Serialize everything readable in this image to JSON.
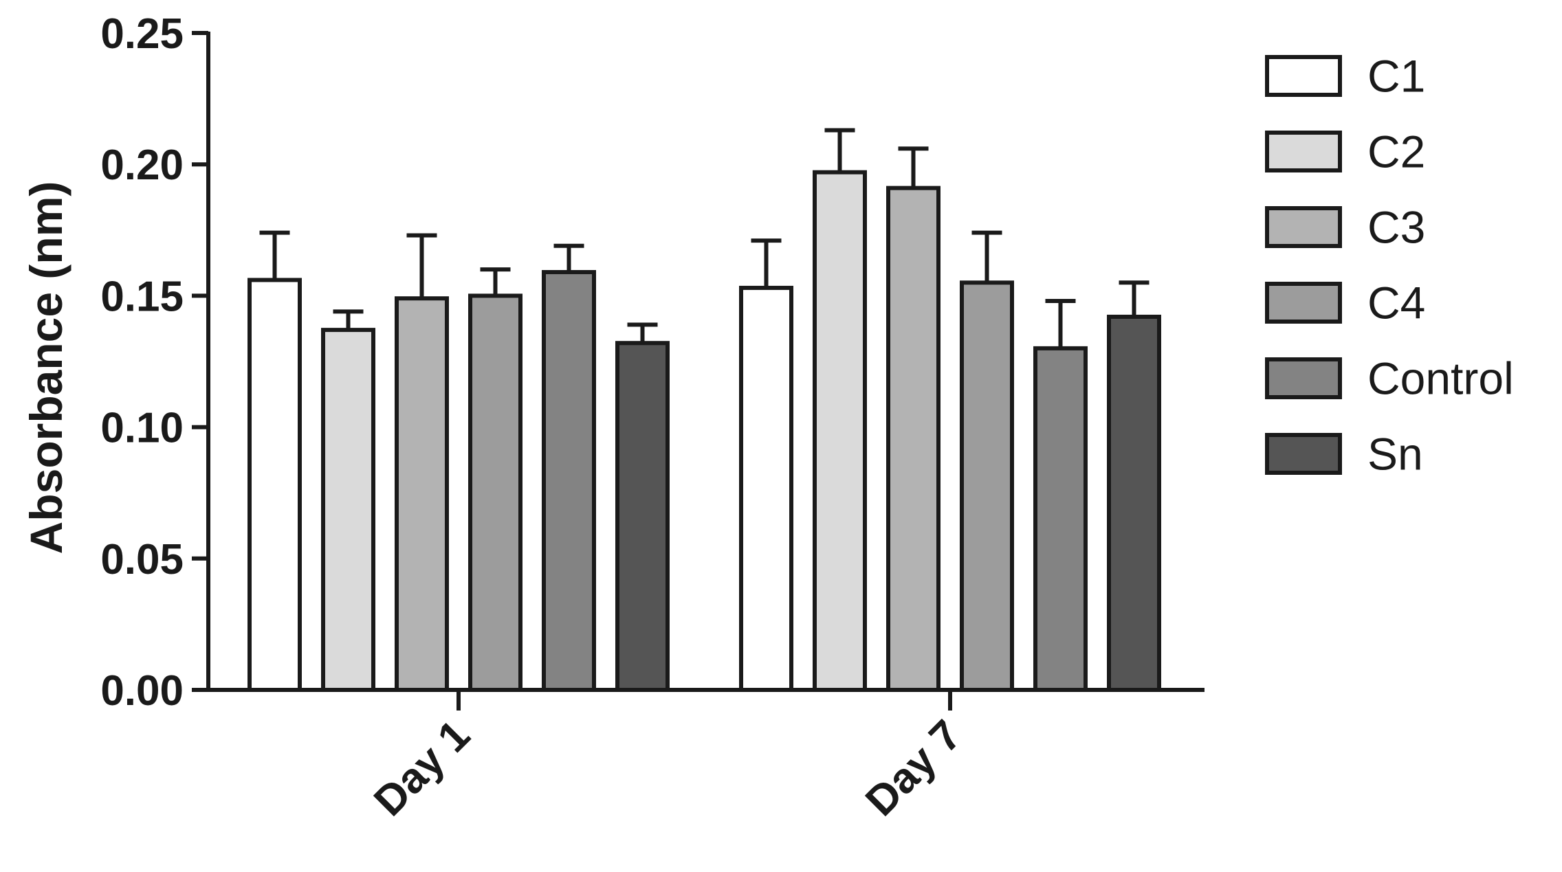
{
  "chart_data": {
    "type": "bar",
    "title": "",
    "xlabel": "",
    "ylabel": "Absorbance (nm)",
    "ylim": [
      0,
      0.25
    ],
    "yticks": [
      "0.00",
      "0.05",
      "0.10",
      "0.15",
      "0.20",
      "0.25"
    ],
    "categories": [
      "Day 1",
      "Day 7"
    ],
    "legend_position": "right",
    "grid": false,
    "series": [
      {
        "name": "C1",
        "color": "#ffffff",
        "values": [
          0.156,
          0.153
        ],
        "errors": [
          0.018,
          0.018
        ]
      },
      {
        "name": "C2",
        "color": "#dadada",
        "values": [
          0.137,
          0.197
        ],
        "errors": [
          0.007,
          0.016
        ]
      },
      {
        "name": "C3",
        "color": "#b3b3b3",
        "values": [
          0.149,
          0.191
        ],
        "errors": [
          0.024,
          0.015
        ]
      },
      {
        "name": "C4",
        "color": "#9c9c9c",
        "values": [
          0.15,
          0.155
        ],
        "errors": [
          0.01,
          0.019
        ]
      },
      {
        "name": "Control",
        "color": "#838383",
        "values": [
          0.159,
          0.13
        ],
        "errors": [
          0.01,
          0.018
        ]
      },
      {
        "name": "Sn",
        "color": "#555555",
        "values": [
          0.132,
          0.142
        ],
        "errors": [
          0.007,
          0.013
        ]
      }
    ]
  }
}
